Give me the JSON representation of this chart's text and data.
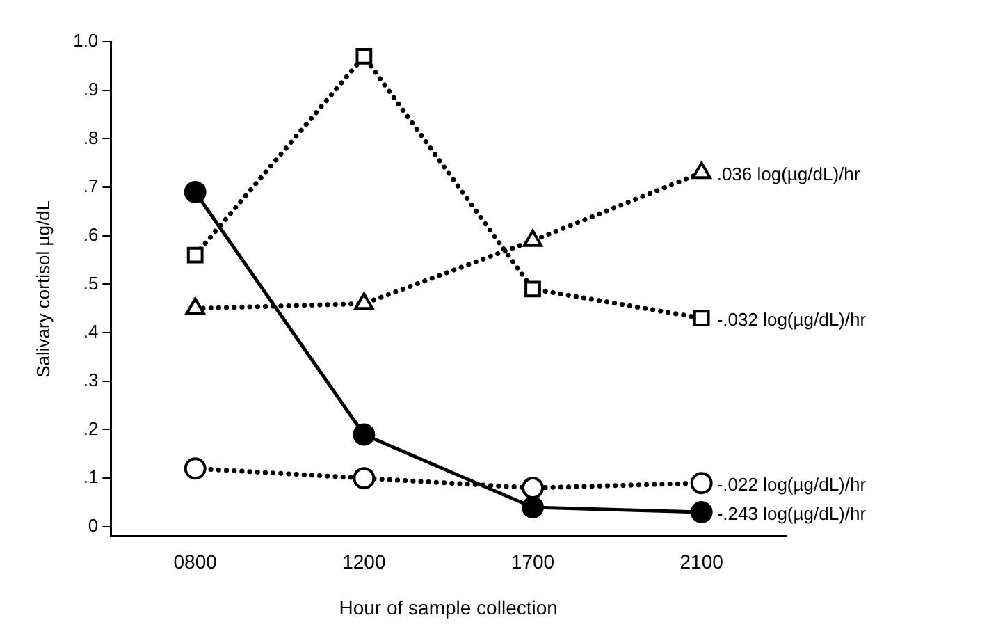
{
  "chart_data": {
    "type": "line",
    "xlabel": "Hour of sample collection",
    "ylabel": "Salivary cortisol µg/dL",
    "categories": [
      "0800",
      "1200",
      "1700",
      "2100"
    ],
    "series": [
      {
        "name": ".036 log(µg/dL)/hr",
        "color": "#000000",
        "values": [
          0.45,
          0.46,
          0.59,
          0.73
        ],
        "marker": "triangle",
        "line_style": "dotted"
      },
      {
        "name": "-.032 log(µg/dL)/hr",
        "color": "#000000",
        "values": [
          0.56,
          0.97,
          0.49,
          0.43
        ],
        "marker": "square",
        "line_style": "dotted"
      },
      {
        "name": "-.022 log(µg/dL)/hr",
        "color": "#000000",
        "values": [
          0.12,
          0.1,
          0.08,
          0.09
        ],
        "marker": "circle",
        "line_style": "dotted"
      },
      {
        "name": "-.243 log(µg/dL)/hr",
        "color": "#000000",
        "values": [
          0.69,
          0.19,
          0.04,
          0.03
        ],
        "marker": "circle",
        "line_style": "solid"
      }
    ],
    "ylim": [
      -0.02,
      1.0
    ],
    "yticks": [
      {
        "value": 0,
        "label": "0"
      },
      {
        "value": 0.1,
        "label": ".1"
      },
      {
        "value": 0.2,
        "label": ".2"
      },
      {
        "value": 0.3,
        "label": ".3"
      },
      {
        "value": 0.4,
        "label": ".4"
      },
      {
        "value": 0.5,
        "label": ".5"
      },
      {
        "value": 0.6,
        "label": ".6"
      },
      {
        "value": 0.7,
        "label": ".7"
      },
      {
        "value": 0.8,
        "label": ".8"
      },
      {
        "value": 0.9,
        "label": ".9"
      },
      {
        "value": 1.0,
        "label": "1.0"
      }
    ],
    "grid": false,
    "legend": false
  }
}
